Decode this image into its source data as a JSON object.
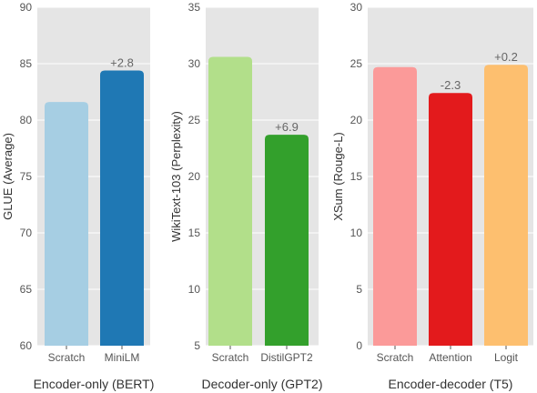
{
  "chart_data": [
    {
      "type": "bar",
      "categories": [
        "Scratch",
        "MiniLM"
      ],
      "values": [
        81.6,
        84.4
      ],
      "colors": [
        "#a6cee3",
        "#1f78b4"
      ],
      "bar_labels": [
        "",
        "+2.8"
      ],
      "xlabel": "Encoder-only (BERT)",
      "ylabel": "GLUE (Average)",
      "ylim": [
        60,
        90
      ],
      "yticks": [
        60,
        65,
        70,
        75,
        80,
        85,
        90
      ],
      "grid": true
    },
    {
      "type": "bar",
      "categories": [
        "Scratch",
        "DistilGPT2"
      ],
      "values": [
        30.6,
        23.7
      ],
      "colors": [
        "#b2df8a",
        "#33a02c"
      ],
      "bar_labels": [
        "",
        "+6.9"
      ],
      "xlabel": "Decoder-only (GPT2)",
      "ylabel": "WikiText-103 (Perplexity)",
      "ylim": [
        5,
        35
      ],
      "yticks": [
        5,
        10,
        15,
        20,
        25,
        30,
        35
      ],
      "grid": true
    },
    {
      "type": "bar",
      "categories": [
        "Scratch",
        "Attention",
        "Logit"
      ],
      "values": [
        24.7,
        22.4,
        24.9
      ],
      "colors": [
        "#fb9a99",
        "#e31a1c",
        "#fdbf6f"
      ],
      "bar_labels": [
        "",
        "-2.3",
        "+0.2"
      ],
      "xlabel": "Encoder-decoder (T5)",
      "ylabel": "XSum (Rouge-L)",
      "ylim": [
        0,
        30
      ],
      "yticks": [
        0,
        5,
        10,
        15,
        20,
        25,
        30
      ],
      "grid": true
    }
  ]
}
